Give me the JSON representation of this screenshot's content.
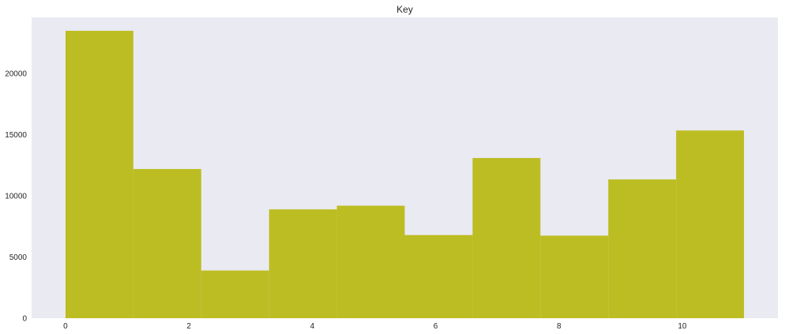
{
  "chart_data": {
    "type": "histogram",
    "title": "Key",
    "xlabel": "",
    "ylabel": "",
    "bins": [
      {
        "start": 0.0,
        "end": 1.1,
        "value": 23500
      },
      {
        "start": 1.1,
        "end": 2.2,
        "value": 12200
      },
      {
        "start": 2.2,
        "end": 3.3,
        "value": 3900
      },
      {
        "start": 3.3,
        "end": 4.4,
        "value": 8900
      },
      {
        "start": 4.4,
        "end": 5.5,
        "value": 9200
      },
      {
        "start": 5.5,
        "end": 6.6,
        "value": 6800
      },
      {
        "start": 6.6,
        "end": 7.7,
        "value": 13100
      },
      {
        "start": 7.7,
        "end": 8.8,
        "value": 6750
      },
      {
        "start": 8.8,
        "end": 9.9,
        "value": 11350
      },
      {
        "start": 9.9,
        "end": 11.0,
        "value": 15350
      }
    ],
    "xticks": [
      0,
      2,
      4,
      6,
      8,
      10
    ],
    "yticks": [
      0,
      5000,
      10000,
      15000,
      20000
    ],
    "xlim": [
      -0.55,
      11.55
    ],
    "ylim": [
      0,
      24600
    ],
    "grid": false,
    "colors": {
      "bar": "#bcbd22",
      "plot_background": "#eaeaf2",
      "text": "#262626"
    }
  }
}
